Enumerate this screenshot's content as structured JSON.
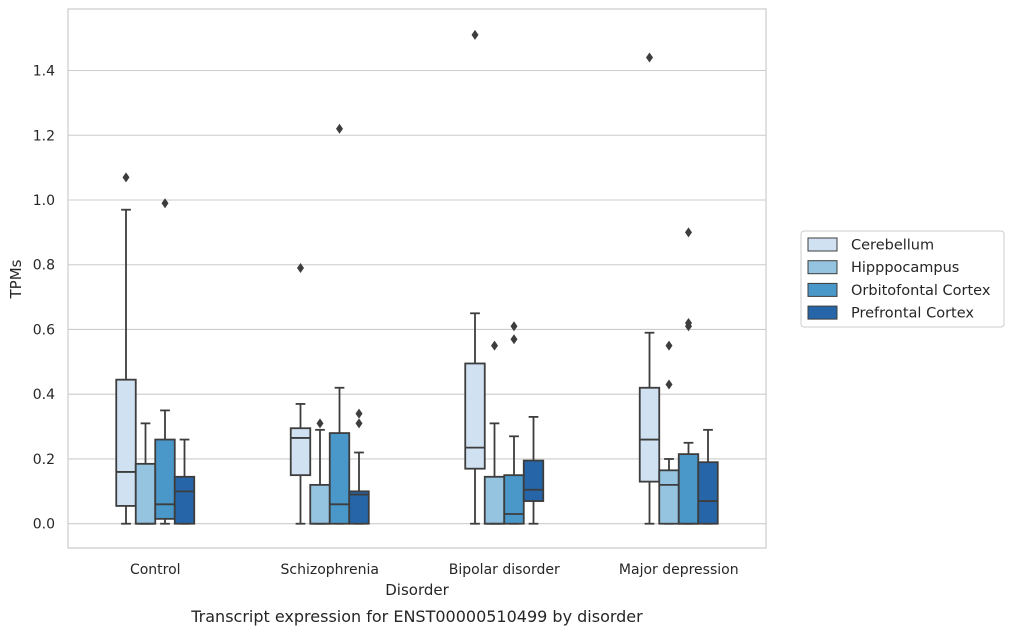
{
  "chart_data": {
    "type": "box",
    "title": "",
    "caption": "Transcript expression for ENST00000510499 by disorder",
    "xlabel": "Disorder",
    "ylabel": "TPMs",
    "ylim": [
      -0.075,
      1.59
    ],
    "yticks": [
      "0.0",
      "0.2",
      "0.4",
      "0.6",
      "0.8",
      "1.0",
      "1.2",
      "1.4"
    ],
    "grid": "horizontal",
    "legend_position": "right",
    "categories": [
      "Control",
      "Schizophrenia",
      "Bipolar disorder",
      "Major depression"
    ],
    "series": [
      {
        "name": "Cerebellum",
        "color": "#d0e1f2",
        "boxes": [
          {
            "whislo": 0.0,
            "q1": 0.055,
            "med": 0.16,
            "q3": 0.445,
            "whishi": 0.97,
            "fliers": [
              1.07
            ]
          },
          {
            "whislo": 0.0,
            "q1": 0.15,
            "med": 0.265,
            "q3": 0.295,
            "whishi": 0.37,
            "fliers": [
              0.79
            ]
          },
          {
            "whislo": 0.0,
            "q1": 0.17,
            "med": 0.235,
            "q3": 0.495,
            "whishi": 0.65,
            "fliers": [
              1.51
            ]
          },
          {
            "whislo": 0.0,
            "q1": 0.13,
            "med": 0.26,
            "q3": 0.42,
            "whishi": 0.59,
            "fliers": [
              1.44
            ]
          }
        ]
      },
      {
        "name": "Hipppocampus",
        "color": "#94c4df",
        "boxes": [
          {
            "whislo": 0.0,
            "q1": 0.0,
            "med": 0.0,
            "q3": 0.185,
            "whishi": 0.31,
            "fliers": []
          },
          {
            "whislo": 0.0,
            "q1": 0.0,
            "med": 0.0,
            "q3": 0.12,
            "whishi": 0.29,
            "fliers": [
              0.31
            ]
          },
          {
            "whislo": 0.0,
            "q1": 0.0,
            "med": 0.0,
            "q3": 0.145,
            "whishi": 0.31,
            "fliers": [
              0.55
            ]
          },
          {
            "whislo": 0.0,
            "q1": 0.0,
            "med": 0.12,
            "q3": 0.165,
            "whishi": 0.2,
            "fliers": [
              0.43,
              0.55
            ]
          }
        ]
      },
      {
        "name": "Orbitofontal Cortex",
        "color": "#4a98c9",
        "boxes": [
          {
            "whislo": 0.0,
            "q1": 0.015,
            "med": 0.06,
            "q3": 0.26,
            "whishi": 0.35,
            "fliers": [
              0.99
            ]
          },
          {
            "whislo": 0.0,
            "q1": 0.0,
            "med": 0.06,
            "q3": 0.28,
            "whishi": 0.42,
            "fliers": [
              1.22
            ]
          },
          {
            "whislo": 0.0,
            "q1": 0.0,
            "med": 0.03,
            "q3": 0.15,
            "whishi": 0.27,
            "fliers": [
              0.57,
              0.61
            ]
          },
          {
            "whislo": 0.0,
            "q1": 0.0,
            "med": 0.0,
            "q3": 0.215,
            "whishi": 0.25,
            "fliers": [
              0.61,
              0.62,
              0.9
            ]
          }
        ]
      },
      {
        "name": "Prefrontal Cortex",
        "color": "#2666a8",
        "boxes": [
          {
            "whislo": 0.0,
            "q1": 0.0,
            "med": 0.1,
            "q3": 0.145,
            "whishi": 0.26,
            "fliers": []
          },
          {
            "whislo": 0.0,
            "q1": 0.0,
            "med": 0.09,
            "q3": 0.1,
            "whishi": 0.22,
            "fliers": [
              0.31,
              0.34
            ]
          },
          {
            "whislo": 0.0,
            "q1": 0.07,
            "med": 0.105,
            "q3": 0.195,
            "whishi": 0.33,
            "fliers": []
          },
          {
            "whislo": 0.0,
            "q1": 0.0,
            "med": 0.07,
            "q3": 0.19,
            "whishi": 0.29,
            "fliers": []
          }
        ]
      }
    ]
  }
}
